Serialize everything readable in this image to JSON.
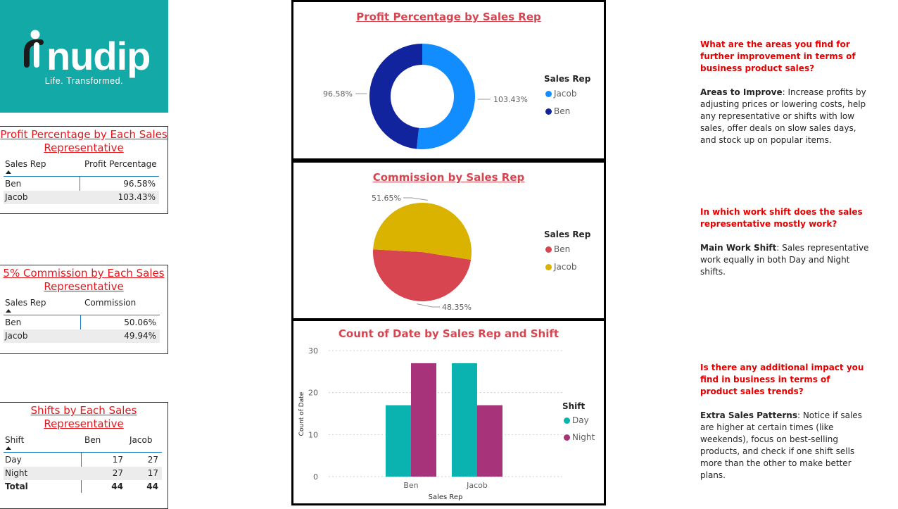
{
  "logo": {
    "name": "nudip",
    "tagline": "Life. Transformed."
  },
  "tables": {
    "profit": {
      "title": "Profit Percentage by Each Sales Representative",
      "headers": [
        "Sales Rep",
        "Profit Percentage"
      ],
      "rows": [
        [
          "Ben",
          "96.58%"
        ],
        [
          "Jacob",
          "103.43%"
        ]
      ]
    },
    "commission": {
      "title": "5% Commission by Each Sales Representative",
      "headers": [
        "Sales Rep",
        "Commission"
      ],
      "rows": [
        [
          "Ben",
          "50.06%"
        ],
        [
          "Jacob",
          "49.94%"
        ]
      ]
    },
    "shifts": {
      "title": "Shifts by Each Sales Representative",
      "headers": [
        "Shift",
        "Ben",
        "Jacob"
      ],
      "rows": [
        [
          "Day",
          "17",
          "27"
        ],
        [
          "Night",
          "27",
          "17"
        ]
      ],
      "total": [
        "Total",
        "44",
        "44"
      ]
    }
  },
  "colors": {
    "jacob_blue": "#118dff",
    "ben_navy": "#12239e",
    "ben_red": "#d64550",
    "jacob_gold": "#d9b300",
    "day_teal": "#0bb3b0",
    "night_purple": "#a7337a",
    "title_red": "#e5161c"
  },
  "chart_data": [
    {
      "type": "pie",
      "variant": "donut",
      "title": "Profit Percentage by Sales Rep",
      "legend_title": "Sales Rep",
      "legend_position": "right",
      "labels": [
        "Jacob",
        "Ben"
      ],
      "values": [
        103.43,
        96.58
      ],
      "data_labels": [
        "103.43%",
        "96.58%"
      ]
    },
    {
      "type": "pie",
      "title": "Commission by Sales Rep",
      "legend_title": "Sales Rep",
      "legend_position": "right",
      "labels": [
        "Ben",
        "Jacob"
      ],
      "values": [
        48.35,
        51.65
      ],
      "data_labels": [
        "48.35%",
        "51.65%"
      ]
    },
    {
      "type": "bar",
      "title": "Count of Date by Sales Rep and Shift",
      "xlabel": "Sales Rep",
      "ylabel": "Count of Date",
      "categories": [
        "Ben",
        "Jacob"
      ],
      "series": [
        {
          "name": "Day",
          "values": [
            17,
            27
          ]
        },
        {
          "name": "Night",
          "values": [
            27,
            17
          ]
        }
      ],
      "ylim": [
        0,
        30
      ],
      "yticks": [
        "0",
        "10",
        "20",
        "30"
      ],
      "legend_title": "Shift",
      "legend_position": "right",
      "grid": true
    }
  ],
  "qa": [
    {
      "question": "What are the areas you find for further improvement in terms of business product sales?",
      "answer_label": "Areas to Improve",
      "answer_text": ": Increase profits by adjusting prices or lowering costs, help any representative or shifts with low sales, offer deals on slow sales days, and stock up on popular items."
    },
    {
      "question": "In which work shift does the sales representative mostly work?",
      "answer_label": "Main Work Shift",
      "answer_text": ": Sales representative work equally in both Day and Night shifts."
    },
    {
      "question": "Is there any additional impact you find in business in terms of product sales trends?",
      "answer_label": "Extra Sales Patterns",
      "answer_text": ": Notice if sales are higher at certain times (like weekends), focus on best-selling products, and check if one shift sells more than the other to make better plans."
    }
  ]
}
